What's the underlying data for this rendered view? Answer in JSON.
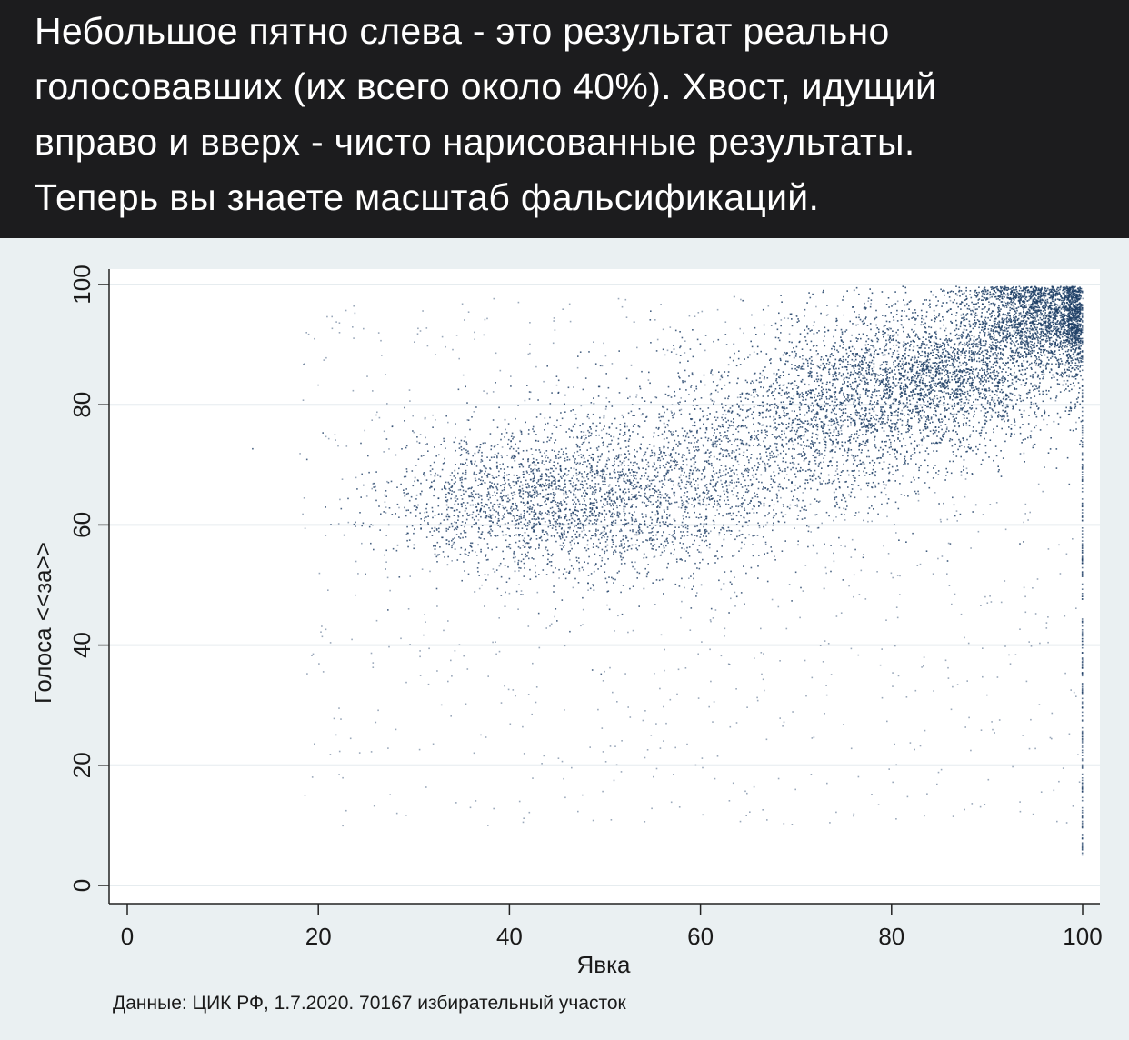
{
  "caption": {
    "text": "Небольшое пятно слева - это результат реально\nголосовавших (их всего около 40%). Хвост, идущий\nвправо и вверх - чисто нарисованные результаты.\nТеперь вы знаете масштаб фальсификаций."
  },
  "colors": {
    "caption_background": "#1c1c1e",
    "caption_text": "#ffffff",
    "figure_background": "#eaf0f2",
    "plot_background": "#ffffff",
    "point_color": "#1f3f66",
    "gridline": "#e6ecef"
  },
  "chart_data": {
    "type": "scatter",
    "title": "",
    "xlabel": "Явка",
    "ylabel": "Голоса <<за>>",
    "source_note": "Данные: ЦИК РФ, 1.7.2020. 70167 избирательный участок",
    "xlim": [
      0,
      100
    ],
    "ylim": [
      0,
      100
    ],
    "x_ticks": [
      "0",
      "20",
      "40",
      "60",
      "80",
      "100"
    ],
    "y_ticks": [
      "0",
      "20",
      "40",
      "60",
      "80",
      "100"
    ],
    "grid": "horizontal",
    "clusters": [
      {
        "x_center": 41,
        "y_center": 64,
        "x_spread": 7,
        "y_spread": 6
      },
      {
        "x_center": 52,
        "y_center": 64,
        "x_spread": 9,
        "y_spread": 7
      },
      {
        "x_center": 63,
        "y_center": 72,
        "x_spread": 9,
        "y_spread": 8
      },
      {
        "x_center": 76,
        "y_center": 80,
        "x_spread": 7,
        "y_spread": 7
      },
      {
        "x_center": 86,
        "y_center": 86,
        "x_spread": 7,
        "y_spread": 6
      },
      {
        "x_center": 96,
        "y_center": 95,
        "x_spread": 4,
        "y_spread": 4
      }
    ]
  }
}
